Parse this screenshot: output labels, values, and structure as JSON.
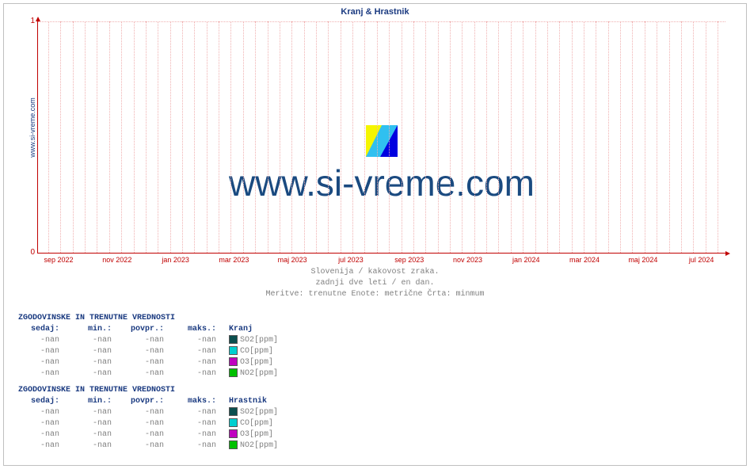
{
  "chart": {
    "type": "line",
    "title": "Kranj & Hrastnik",
    "title_color": "#1a3a80",
    "title_fontsize": 11,
    "ylabel_outside": "www.si-vreme.com",
    "axis_color": "#c00000",
    "grid_color": "#f0b0b0",
    "background_color": "#ffffff",
    "ylim": [
      0,
      1
    ],
    "yticks": [
      0,
      1
    ],
    "ytick_labels": [
      "0",
      "1"
    ],
    "xticks_pct": [
      3,
      11.5,
      20,
      28.5,
      37,
      45.5,
      54,
      62.5,
      71,
      79.5,
      88,
      96.5
    ],
    "xtick_labels": [
      "sep 2022",
      "nov 2022",
      "jan 2023",
      "mar 2023",
      "maj 2023",
      "jul 2023",
      "sep 2023",
      "nov 2023",
      "jan 2024",
      "mar 2024",
      "maj 2024",
      "jul 2024"
    ],
    "watermark_text": "www.si-vreme.com",
    "watermark_color": "#1a4a80",
    "caption_lines": [
      "Slovenija / kakovost zraka.",
      "zadnji dve leti / en dan.",
      "Meritve: trenutne  Enote: metrične  Črta: minmum"
    ],
    "caption_color": "#808080"
  },
  "tables_heading": "ZGODOVINSKE IN TRENUTNE VREDNOSTI",
  "columns": [
    "sedaj:",
    "min.:",
    "povpr.:",
    "maks.:"
  ],
  "tables": [
    {
      "location": "Kranj",
      "rows": [
        {
          "v": [
            "-nan",
            "-nan",
            "-nan",
            "-nan"
          ],
          "label": "SO2[ppm]",
          "swatch": "#0b4f4f"
        },
        {
          "v": [
            "-nan",
            "-nan",
            "-nan",
            "-nan"
          ],
          "label": "CO[ppm]",
          "swatch": "#00d0d0"
        },
        {
          "v": [
            "-nan",
            "-nan",
            "-nan",
            "-nan"
          ],
          "label": "O3[ppm]",
          "swatch": "#c000c0"
        },
        {
          "v": [
            "-nan",
            "-nan",
            "-nan",
            "-nan"
          ],
          "label": "NO2[ppm]",
          "swatch": "#00c000"
        }
      ]
    },
    {
      "location": "Hrastnik",
      "rows": [
        {
          "v": [
            "-nan",
            "-nan",
            "-nan",
            "-nan"
          ],
          "label": "SO2[ppm]",
          "swatch": "#0b4f4f"
        },
        {
          "v": [
            "-nan",
            "-nan",
            "-nan",
            "-nan"
          ],
          "label": "CO[ppm]",
          "swatch": "#00d0d0"
        },
        {
          "v": [
            "-nan",
            "-nan",
            "-nan",
            "-nan"
          ],
          "label": "O3[ppm]",
          "swatch": "#c000c0"
        },
        {
          "v": [
            "-nan",
            "-nan",
            "-nan",
            "-nan"
          ],
          "label": "NO2[ppm]",
          "swatch": "#00c000"
        }
      ]
    }
  ]
}
